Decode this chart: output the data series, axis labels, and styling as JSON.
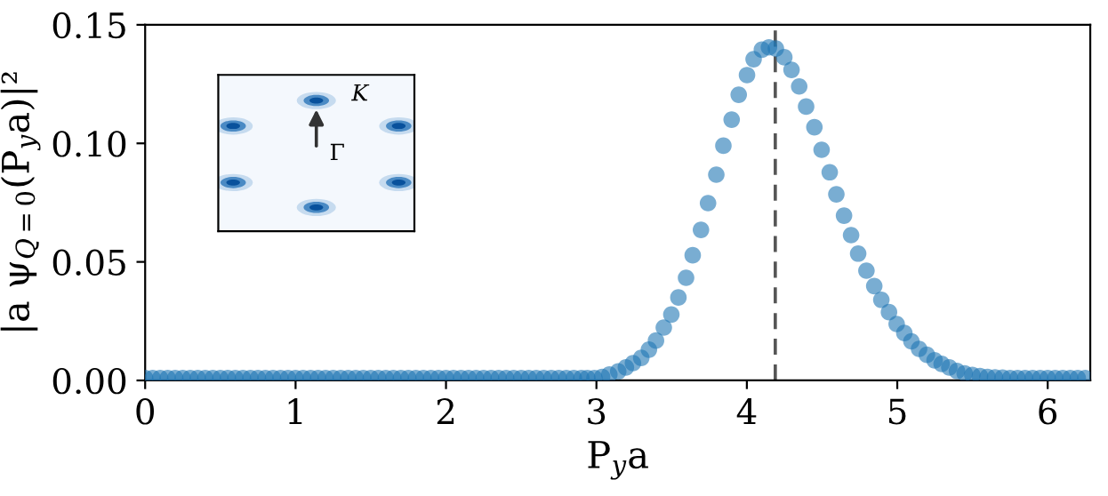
{
  "chart_data": {
    "type": "scatter",
    "xlabel": "P$_{y}$a",
    "ylabel": "|a ψ$_{Q=0}$(P$_{y}$a)|²",
    "series": [
      {
        "color": "#1f77b4",
        "x": [
          0,
          0.05,
          0.1,
          0.15,
          0.2,
          0.25,
          0.3,
          0.35,
          0.4,
          0.45,
          0.5,
          0.55,
          0.6,
          0.65,
          0.7,
          0.75,
          0.8,
          0.85,
          0.9,
          0.95,
          1,
          1.05,
          1.1,
          1.15,
          1.2,
          1.25,
          1.3,
          1.35,
          1.4,
          1.45,
          1.5,
          1.55,
          1.6,
          1.65,
          1.7,
          1.75,
          1.8,
          1.85,
          1.9,
          1.95,
          2,
          2.05,
          2.1,
          2.15,
          2.2,
          2.25,
          2.3,
          2.35,
          2.4,
          2.45,
          2.5,
          2.55,
          2.6,
          2.65,
          2.7,
          2.75,
          2.8,
          2.85,
          2.9,
          2.94,
          2.987,
          3.038,
          3.086,
          3.145,
          3.196,
          3.243,
          3.298,
          3.349,
          3.396,
          3.448,
          3.498,
          3.545,
          3.596,
          3.64,
          3.695,
          3.742,
          3.797,
          3.844,
          3.899,
          3.946,
          4.001,
          4.045,
          4.1,
          4.147,
          4.193,
          4.249,
          4.297,
          4.348,
          4.394,
          4.449,
          4.497,
          4.551,
          4.595,
          4.646,
          4.693,
          4.74,
          4.795,
          4.847,
          4.894,
          4.945,
          4.996,
          5.047,
          5.094,
          5.145,
          5.197,
          5.248,
          5.295,
          5.346,
          5.397,
          5.448,
          5.499,
          5.55,
          5.6,
          5.65,
          5.7,
          5.75,
          5.8,
          5.85,
          5.9,
          5.95,
          6,
          6.05,
          6.1,
          6.15,
          6.2,
          6.25
        ],
        "values": [
          0.001,
          0.001,
          0.001,
          0.001,
          0.001,
          0.001,
          0.001,
          0.001,
          0.001,
          0.001,
          0.001,
          0.001,
          0.001,
          0.001,
          0.001,
          0.001,
          0.001,
          0.001,
          0.001,
          0.001,
          0.001,
          0.001,
          0.001,
          0.001,
          0.001,
          0.001,
          0.001,
          0.001,
          0.001,
          0.001,
          0.001,
          0.001,
          0.001,
          0.001,
          0.001,
          0.001,
          0.001,
          0.001,
          0.001,
          0.001,
          0.001,
          0.001,
          0.001,
          0.001,
          0.001,
          0.001,
          0.001,
          0.001,
          0.001,
          0.001,
          0.001,
          0.001,
          0.001,
          0.001,
          0.001,
          0.001,
          0.001,
          0.001,
          0.001,
          0.001,
          0.001,
          0.0015,
          0.0025,
          0.0038,
          0.0055,
          0.0073,
          0.0095,
          0.013,
          0.0168,
          0.0223,
          0.0278,
          0.035,
          0.0433,
          0.0528,
          0.0635,
          0.0748,
          0.0868,
          0.099,
          0.11,
          0.1205,
          0.1288,
          0.1355,
          0.1395,
          0.1405,
          0.14,
          0.1363,
          0.131,
          0.124,
          0.1155,
          0.1068,
          0.0973,
          0.0878,
          0.0785,
          0.0695,
          0.0613,
          0.0535,
          0.0463,
          0.0398,
          0.034,
          0.0288,
          0.0238,
          0.02,
          0.0165,
          0.0133,
          0.0108,
          0.0085,
          0.007,
          0.0055,
          0.004,
          0.003,
          0.0023,
          0.0018,
          0.0015,
          0.0013,
          0.0012,
          0.001,
          0.001,
          0.001,
          0.001,
          0.001,
          0.001,
          0.001,
          0.001,
          0.001,
          0.001,
          0.001
        ]
      }
    ],
    "marker": "circle",
    "grid": false,
    "legend": false,
    "xlim": [
      0,
      6.283
    ],
    "xticks": [
      0,
      1,
      2,
      3,
      4,
      5,
      6
    ],
    "ylim": [
      0,
      0.15
    ],
    "yticks": [
      {
        "value": 0,
        "label": "0.00"
      },
      {
        "value": 0.05,
        "label": "0.05"
      },
      {
        "value": 0.1,
        "label": "0.10"
      },
      {
        "value": 0.15,
        "label": "0.15"
      }
    ],
    "ref_lines": [
      {
        "axis": "x",
        "value": 4.189,
        "color": "#555555",
        "line_style": "dashed"
      }
    ],
    "annotations": [
      "K",
      "Γ"
    ]
  }
}
